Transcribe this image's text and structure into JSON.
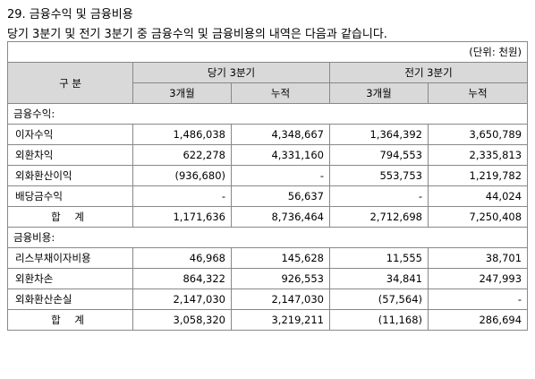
{
  "title": "29. 금융수익 및 금융비용",
  "description": "당기 3분기 및 전기 3분기 중 금융수익 및 금융비용의 내역은 다음과 같습니다.",
  "unit": "(단위: 천원)",
  "header": {
    "category": "구 분",
    "current": "당기 3분기",
    "prior": "전기 3분기",
    "three_month": "3개월",
    "cumulative": "누적"
  },
  "sections": [
    {
      "label": "금융수익:",
      "rows": [
        {
          "item": "이자수익",
          "c3": "1,486,038",
          "cc": "4,348,667",
          "p3": "1,364,392",
          "pc": "3,650,789"
        },
        {
          "item": "외환차익",
          "c3": "622,278",
          "cc": "4,331,160",
          "p3": "794,553",
          "pc": "2,335,813"
        },
        {
          "item": "외화환산이익",
          "c3": "(936,680)",
          "cc": "-",
          "p3": "553,753",
          "pc": "1,219,782"
        },
        {
          "item": "배당금수익",
          "c3": "-",
          "cc": "56,637",
          "p3": "-",
          "pc": "44,024"
        }
      ],
      "total": {
        "item": "합 계",
        "c3": "1,171,636",
        "cc": "8,736,464",
        "p3": "2,712,698",
        "pc": "7,250,408"
      }
    },
    {
      "label": "금융비용:",
      "rows": [
        {
          "item": "리스부채이자비용",
          "c3": "46,968",
          "cc": "145,628",
          "p3": "11,555",
          "pc": "38,701"
        },
        {
          "item": "외환차손",
          "c3": "864,322",
          "cc": "926,553",
          "p3": "34,841",
          "pc": "247,993"
        },
        {
          "item": "외화환산손실",
          "c3": "2,147,030",
          "cc": "2,147,030",
          "p3": "(57,564)",
          "pc": "-"
        }
      ],
      "total": {
        "item": "합 계",
        "c3": "3,058,320",
        "cc": "3,219,211",
        "p3": "(11,168)",
        "pc": "286,694"
      }
    }
  ]
}
